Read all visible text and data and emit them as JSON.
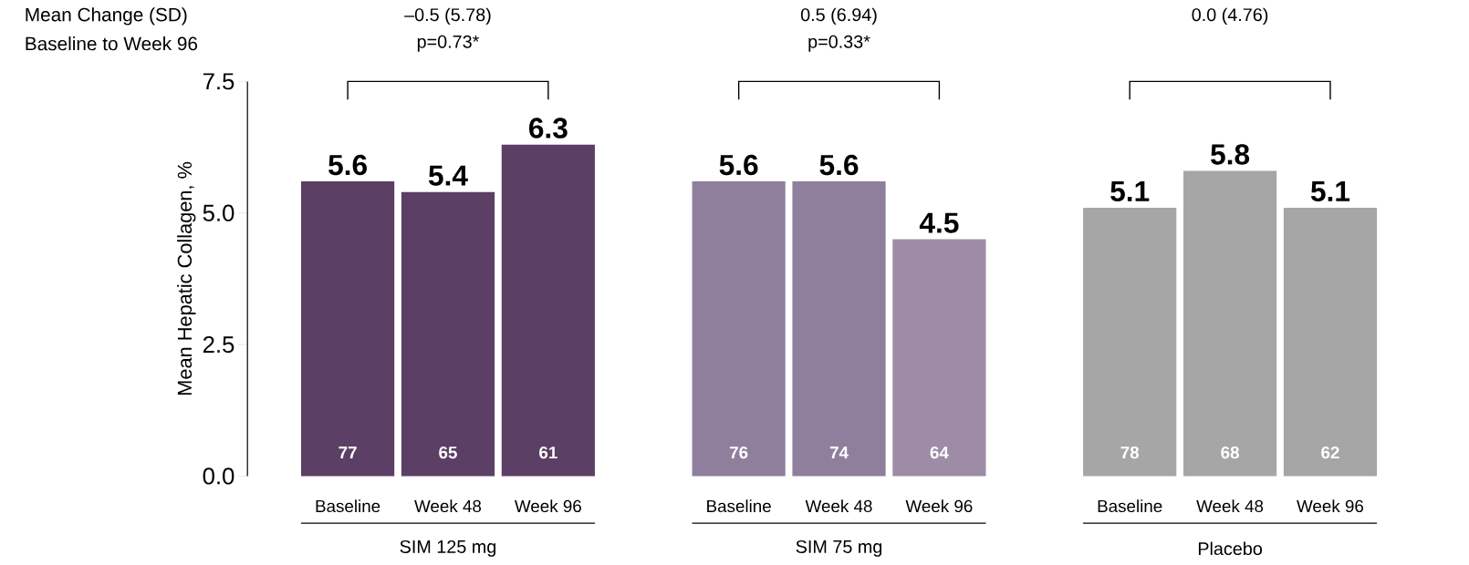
{
  "chart_data": {
    "type": "bar",
    "ylabel": "Mean Hepatic Collagen, %",
    "categories": [
      "Baseline",
      "Week 48",
      "Week 96",
      "Baseline",
      "Week 48",
      "Week 96",
      "Baseline",
      "Week 48",
      "Week 96"
    ],
    "values": [
      5.6,
      5.4,
      6.3,
      5.6,
      5.6,
      4.5,
      5.1,
      5.8,
      5.1
    ],
    "colors": [
      "#5b3f65",
      "#5b3f65",
      "#5b3f65",
      "#8f7f9d",
      "#8f7f9d",
      "#9e8ca7",
      "#a6a6a6",
      "#a6a6a6",
      "#a6a6a6"
    ],
    "ylim": [
      0,
      7.5
    ],
    "yticks": [
      {
        "value": 0,
        "label": "0.0"
      },
      {
        "value": 2.5,
        "label": "2.5"
      },
      {
        "value": 5,
        "label": "5.0"
      },
      {
        "value": 7.5,
        "label": "7.5"
      }
    ],
    "data_labels": true,
    "annotations": [
      "Mean Change (SD)",
      "Baseline to Week 96",
      "–0.5 (5.78)",
      "p=0.73*",
      "0.5 (6.94)",
      "p=0.33*",
      "0.0 (4.76)",
      "77",
      "65",
      "61",
      "76",
      "74",
      "64",
      "78",
      "68",
      "62",
      "SIM 125 mg",
      "SIM 75 mg",
      "Placebo"
    ]
  }
}
